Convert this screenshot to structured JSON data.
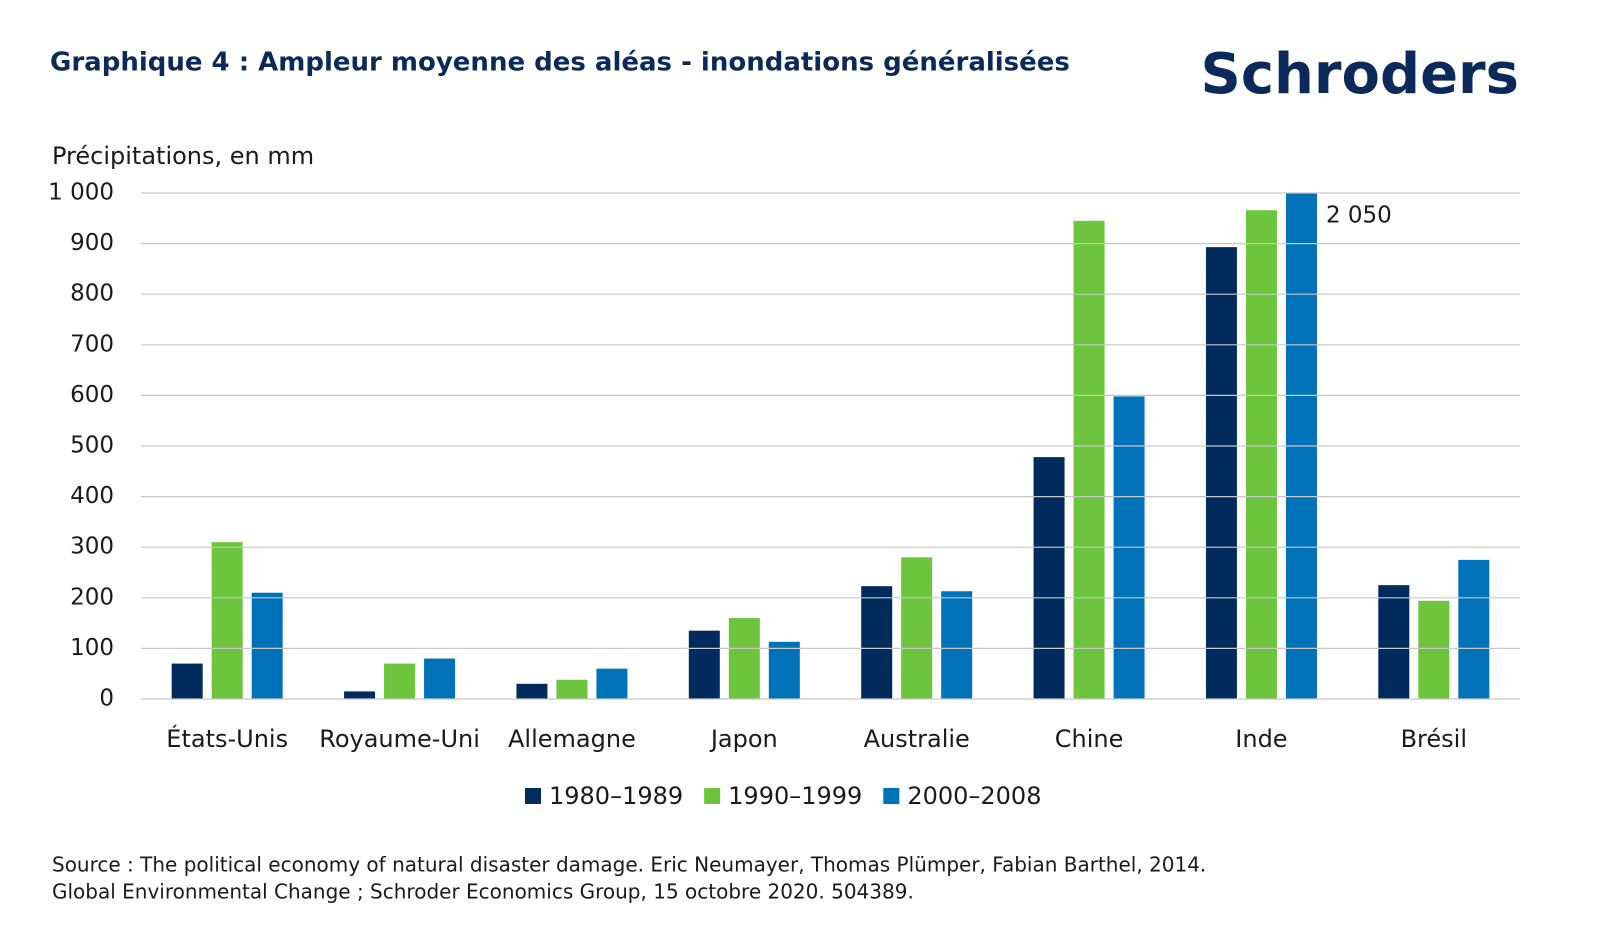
{
  "chart_data": {
    "type": "bar",
    "title": "Graphique 4 : Ampleur moyenne des aléas - inondations généralisées",
    "logo": "Schroders",
    "y_axis_label": "Précipitations, en mm",
    "categories": [
      "États-Unis",
      "Royaume-Uni",
      "Allemagne",
      "Japon",
      "Australie",
      "Chine",
      "Inde",
      "Brésil"
    ],
    "series": [
      {
        "name": "1980–1989",
        "color": "#002b5c",
        "values": [
          70,
          15,
          30,
          135,
          223,
          478,
          893,
          225
        ]
      },
      {
        "name": "1990–1999",
        "color": "#6cc53c",
        "values": [
          310,
          70,
          38,
          160,
          280,
          945,
          966,
          194
        ]
      },
      {
        "name": "2000–2008",
        "color": "#0072b9",
        "values": [
          210,
          80,
          60,
          113,
          213,
          598,
          2050,
          275
        ],
        "value_labels": [
          null,
          null,
          null,
          null,
          null,
          null,
          "2 050",
          null
        ]
      }
    ],
    "ylim": [
      0,
      1000
    ],
    "yticks": [
      0,
      100,
      200,
      300,
      400,
      500,
      600,
      700,
      800,
      900,
      {
        "value": 1000,
        "label": "1 000"
      }
    ],
    "grid": true,
    "legend": "bottom",
    "source": [
      "Source : The political economy of natural disaster damage. Eric Neumayer, Thomas Plümper, Fabian Barthel, 2014.",
      "Global Environmental Change ; Schroder Economics Group, 15 octobre 2020. 504389."
    ]
  }
}
